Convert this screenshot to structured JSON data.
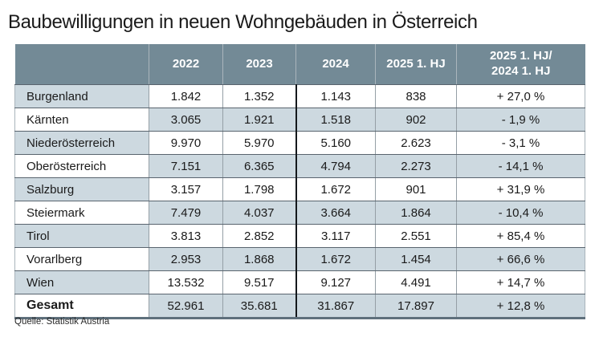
{
  "title": "Baubewilligungen in neuen Wohngebäuden in Österreich",
  "source": "Quelle: Statistik Austria",
  "colors": {
    "header_bg": "#738a96",
    "header_text": "#ffffff",
    "row_shaded_bg": "#cdd9e0",
    "row_plain_bg": "#ffffff",
    "grid_line": "#59646e",
    "heavy_divider": "#14181c",
    "bottom_border": "#5f707c",
    "text": "#1a1a1a"
  },
  "table": {
    "columns": [
      "",
      "2022",
      "2023",
      "2024",
      "2025 1. HJ",
      "2025 1. HJ/\n2024 1. HJ"
    ],
    "rows": [
      {
        "label": "Burgenland",
        "values": [
          "1.842",
          "1.352",
          "1.143",
          "838",
          "+ 27,0 %"
        ]
      },
      {
        "label": "Kärnten",
        "values": [
          "3.065",
          "1.921",
          "1.518",
          "902",
          "- 1,9 %"
        ]
      },
      {
        "label": "Niederösterreich",
        "values": [
          "9.970",
          "5.970",
          "5.160",
          "2.623",
          "- 3,1 %"
        ]
      },
      {
        "label": "Oberösterreich",
        "values": [
          "7.151",
          "6.365",
          "4.794",
          "2.273",
          "- 14,1 %"
        ]
      },
      {
        "label": "Salzburg",
        "values": [
          "3.157",
          "1.798",
          "1.672",
          "901",
          "+ 31,9 %"
        ]
      },
      {
        "label": "Steiermark",
        "values": [
          "7.479",
          "4.037",
          "3.664",
          "1.864",
          "- 10,4 %"
        ]
      },
      {
        "label": "Tirol",
        "values": [
          "3.813",
          "2.852",
          "3.117",
          "2.551",
          "+ 85,4 %"
        ]
      },
      {
        "label": "Vorarlberg",
        "values": [
          "2.953",
          "1.868",
          "1.672",
          "1.454",
          "+ 66,6 %"
        ]
      },
      {
        "label": "Wien",
        "values": [
          "13.532",
          "9.517",
          "9.127",
          "4.491",
          "+ 14,7 %"
        ]
      },
      {
        "label": "Gesamt",
        "values": [
          "52.961",
          "35.681",
          "31.867",
          "17.897",
          "+ 12,8 %"
        ]
      }
    ]
  },
  "chart_data": {
    "type": "table",
    "title": "Baubewilligungen in neuen Wohngebäuden in Österreich",
    "columns": [
      "2022",
      "2023",
      "2024",
      "2025 1. HJ",
      "2025 1. HJ/2024 1. HJ"
    ],
    "row_header": [
      "Burgenland",
      "Kärnten",
      "Niederösterreich",
      "Oberösterreich",
      "Salzburg",
      "Steiermark",
      "Tirol",
      "Vorarlberg",
      "Wien",
      "Gesamt"
    ],
    "values": [
      [
        1842,
        1352,
        1143,
        838,
        "+27,0 %"
      ],
      [
        3065,
        1921,
        1518,
        902,
        "-1,9 %"
      ],
      [
        9970,
        5970,
        5160,
        2623,
        "-3,1 %"
      ],
      [
        7151,
        6365,
        4794,
        2273,
        "-14,1 %"
      ],
      [
        3157,
        1798,
        1672,
        901,
        "+31,9 %"
      ],
      [
        7479,
        4037,
        3664,
        1864,
        "-10,4 %"
      ],
      [
        3813,
        2852,
        3117,
        2551,
        "+85,4 %"
      ],
      [
        2953,
        1868,
        1672,
        1454,
        "+66,6 %"
      ],
      [
        13532,
        9517,
        9127,
        4491,
        "+14,7 %"
      ],
      [
        52961,
        35681,
        31867,
        17897,
        "+12,8 %"
      ]
    ],
    "source": "Quelle: Statistik Austria"
  }
}
